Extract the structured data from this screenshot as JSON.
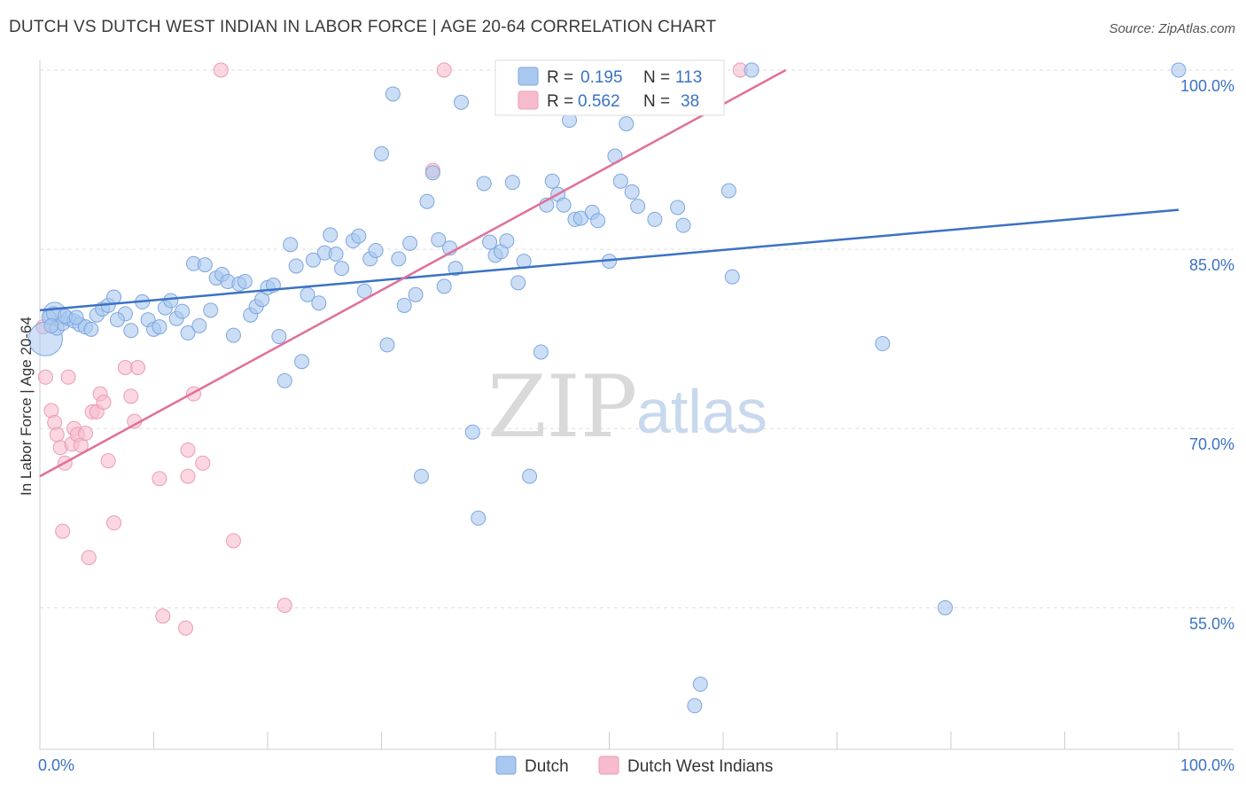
{
  "title": "DUTCH VS DUTCH WEST INDIAN IN LABOR FORCE | AGE 20-64 CORRELATION CHART",
  "source": "Source: ZipAtlas.com",
  "watermark": {
    "zip": "ZIP",
    "atlas": "atlas"
  },
  "colors": {
    "blue": "#3b72c4",
    "blue_fill": "#a9c8f0",
    "pink": "#e07099",
    "pink_fill": "#f6bccd",
    "grid": "#dddddd"
  },
  "legend": {
    "rows": [
      {
        "r_label": "R = ",
        "r_value": "0.195",
        "n_label": "N = ",
        "n_value": "113"
      },
      {
        "r_label": "R = ",
        "r_value": "0.562",
        "n_label": "N = ",
        "n_value": "38"
      }
    ]
  },
  "bottom_legend": [
    "Dutch",
    "Dutch West Indians"
  ],
  "chart_data": {
    "type": "scatter",
    "title": "DUTCH VS DUTCH WEST INDIAN IN LABOR FORCE | AGE 20-64 CORRELATION CHART",
    "xlabel": "",
    "ylabel": "In Labor Force | Age 20-64",
    "xlim": [
      0,
      100
    ],
    "ylim": [
      43,
      100
    ],
    "x_tick_labels": [
      "0.0%",
      "100.0%"
    ],
    "y_ticks": [
      55,
      70,
      85,
      100
    ],
    "y_tick_labels": [
      "55.0%",
      "70.0%",
      "85.0%",
      "100.0%"
    ],
    "grid": true,
    "legend_position": "top-center",
    "series": [
      {
        "name": "Dutch",
        "r": 0.195,
        "n": 113,
        "trend": {
          "x": [
            0,
            100
          ],
          "y": [
            79.9,
            88.3
          ]
        },
        "points": [
          [
            0.8,
            79.3
          ],
          [
            1.2,
            79.6
          ],
          [
            1.5,
            78.4
          ],
          [
            2.0,
            78.8
          ],
          [
            2.5,
            79.2
          ],
          [
            3.0,
            79.0
          ],
          [
            3.5,
            78.7
          ],
          [
            4.0,
            78.5
          ],
          [
            4.5,
            78.3
          ],
          [
            5.0,
            79.5
          ],
          [
            5.5,
            80.0
          ],
          [
            6.0,
            80.3
          ],
          [
            6.5,
            81.0
          ],
          [
            7.5,
            79.6
          ],
          [
            8.0,
            78.2
          ],
          [
            9.0,
            80.6
          ],
          [
            9.5,
            79.1
          ],
          [
            10.0,
            78.3
          ],
          [
            10.5,
            78.5
          ],
          [
            11.0,
            80.1
          ],
          [
            11.5,
            80.7
          ],
          [
            12.0,
            79.2
          ],
          [
            12.5,
            79.8
          ],
          [
            13.0,
            78.0
          ],
          [
            13.5,
            83.8
          ],
          [
            14.0,
            78.6
          ],
          [
            14.5,
            83.7
          ],
          [
            15.0,
            79.9
          ],
          [
            15.5,
            82.6
          ],
          [
            16.0,
            82.9
          ],
          [
            16.5,
            82.3
          ],
          [
            17.0,
            77.8
          ],
          [
            17.5,
            82.1
          ],
          [
            18.0,
            82.3
          ],
          [
            18.5,
            79.5
          ],
          [
            19.0,
            80.2
          ],
          [
            19.5,
            80.8
          ],
          [
            20.0,
            81.8
          ],
          [
            20.5,
            82.0
          ],
          [
            21.0,
            77.7
          ],
          [
            21.5,
            74.0
          ],
          [
            22.0,
            85.4
          ],
          [
            22.5,
            83.6
          ],
          [
            23.0,
            75.6
          ],
          [
            23.5,
            81.2
          ],
          [
            24.0,
            84.1
          ],
          [
            24.5,
            80.5
          ],
          [
            25.0,
            84.7
          ],
          [
            25.5,
            86.2
          ],
          [
            26.0,
            84.6
          ],
          [
            26.5,
            83.4
          ],
          [
            27.5,
            85.7
          ],
          [
            28.0,
            86.1
          ],
          [
            28.5,
            81.5
          ],
          [
            29.0,
            84.2
          ],
          [
            29.5,
            84.9
          ],
          [
            30.0,
            93.0
          ],
          [
            30.5,
            77.0
          ],
          [
            31.0,
            98.0
          ],
          [
            31.5,
            84.2
          ],
          [
            32.0,
            80.3
          ],
          [
            32.5,
            85.5
          ],
          [
            33.0,
            81.2
          ],
          [
            33.5,
            66.0
          ],
          [
            34.0,
            89.0
          ],
          [
            34.5,
            91.4
          ],
          [
            35.0,
            85.8
          ],
          [
            35.5,
            81.9
          ],
          [
            36.0,
            85.1
          ],
          [
            36.5,
            83.4
          ],
          [
            37.0,
            97.3
          ],
          [
            38.0,
            69.7
          ],
          [
            38.5,
            62.5
          ],
          [
            39.0,
            90.5
          ],
          [
            39.5,
            85.6
          ],
          [
            40.0,
            84.5
          ],
          [
            40.5,
            84.8
          ],
          [
            41.0,
            85.7
          ],
          [
            41.5,
            90.6
          ],
          [
            42.0,
            82.2
          ],
          [
            42.5,
            84.0
          ],
          [
            43.0,
            66.0
          ],
          [
            44.0,
            76.4
          ],
          [
            44.5,
            88.7
          ],
          [
            45.0,
            90.7
          ],
          [
            45.5,
            89.6
          ],
          [
            46.0,
            88.7
          ],
          [
            46.5,
            95.8
          ],
          [
            47.0,
            87.5
          ],
          [
            47.5,
            87.6
          ],
          [
            48.5,
            88.1
          ],
          [
            49.0,
            87.4
          ],
          [
            50.0,
            84.0
          ],
          [
            50.5,
            92.8
          ],
          [
            51.0,
            90.7
          ],
          [
            51.5,
            95.5
          ],
          [
            52.0,
            89.8
          ],
          [
            52.5,
            88.6
          ],
          [
            54.0,
            87.5
          ],
          [
            56.0,
            88.5
          ],
          [
            56.5,
            87.0
          ],
          [
            58.0,
            48.6
          ],
          [
            57.5,
            46.8
          ],
          [
            60.5,
            89.9
          ],
          [
            60.8,
            82.7
          ],
          [
            62.5,
            100.0
          ],
          [
            74.0,
            77.1
          ],
          [
            79.5,
            55.0
          ],
          [
            100.0,
            100.0
          ],
          [
            2.2,
            79.4
          ],
          [
            1.0,
            78.6
          ],
          [
            3.2,
            79.3
          ],
          [
            6.8,
            79.1
          ]
        ],
        "big_points": [
          [
            0.5,
            77.5
          ],
          [
            1.3,
            79.6
          ]
        ]
      },
      {
        "name": "Dutch West Indians",
        "r": 0.562,
        "n": 38,
        "trend": {
          "x": [
            0,
            65.5
          ],
          "y": [
            66.0,
            100.0
          ]
        },
        "points": [
          [
            0.3,
            78.5
          ],
          [
            0.5,
            74.3
          ],
          [
            1.0,
            71.5
          ],
          [
            1.3,
            70.5
          ],
          [
            1.5,
            69.5
          ],
          [
            1.8,
            68.4
          ],
          [
            2.0,
            61.4
          ],
          [
            2.2,
            67.1
          ],
          [
            2.5,
            74.3
          ],
          [
            2.8,
            68.7
          ],
          [
            3.0,
            70.0
          ],
          [
            3.3,
            69.5
          ],
          [
            3.6,
            68.6
          ],
          [
            4.0,
            69.6
          ],
          [
            4.3,
            59.2
          ],
          [
            4.6,
            71.4
          ],
          [
            5.0,
            71.4
          ],
          [
            5.3,
            72.9
          ],
          [
            5.6,
            72.2
          ],
          [
            6.0,
            67.3
          ],
          [
            6.5,
            62.1
          ],
          [
            7.5,
            75.1
          ],
          [
            8.0,
            72.7
          ],
          [
            8.3,
            70.6
          ],
          [
            8.6,
            75.1
          ],
          [
            10.5,
            65.8
          ],
          [
            10.8,
            54.3
          ],
          [
            12.8,
            53.3
          ],
          [
            13.0,
            66.0
          ],
          [
            13.0,
            68.2
          ],
          [
            13.5,
            72.9
          ],
          [
            14.3,
            67.1
          ],
          [
            17.0,
            60.6
          ],
          [
            21.5,
            55.2
          ],
          [
            15.9,
            100.0
          ],
          [
            35.5,
            100.0
          ],
          [
            34.5,
            91.6
          ],
          [
            61.5,
            100.0
          ]
        ]
      }
    ]
  }
}
